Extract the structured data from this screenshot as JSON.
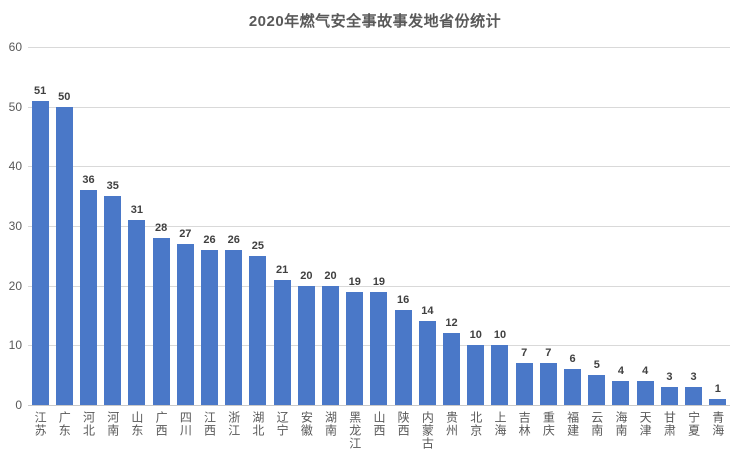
{
  "chart_data": {
    "type": "bar",
    "title": "2020年燃气安全事故事发地省份统计",
    "categories": [
      "江苏",
      "广东",
      "河北",
      "河南",
      "山东",
      "广西",
      "四川",
      "江西",
      "浙江",
      "湖北",
      "辽宁",
      "安徽",
      "湖南",
      "黑龙江",
      "山西",
      "陕西",
      "内蒙古",
      "贵州",
      "北京",
      "上海",
      "吉林",
      "重庆",
      "福建",
      "云南",
      "海南",
      "天津",
      "甘肃",
      "宁夏",
      "青海"
    ],
    "values": [
      51,
      50,
      36,
      35,
      31,
      28,
      27,
      26,
      26,
      25,
      21,
      20,
      20,
      19,
      19,
      16,
      14,
      12,
      10,
      10,
      7,
      7,
      6,
      5,
      4,
      4,
      3,
      3,
      1
    ],
    "xlabel": "",
    "ylabel": "",
    "ylim": [
      0,
      60
    ],
    "yticks": [
      0,
      10,
      20,
      30,
      40,
      50,
      60
    ],
    "grid": true,
    "legend": false,
    "data_labels": true
  },
  "colors": {
    "bar": "#4a78c8",
    "title_text": "#595959",
    "axis_text": "#595959",
    "data_label_text": "#404040",
    "gridline": "#d9d9d9",
    "baseline": "#c9c9c9",
    "background": "#ffffff"
  }
}
